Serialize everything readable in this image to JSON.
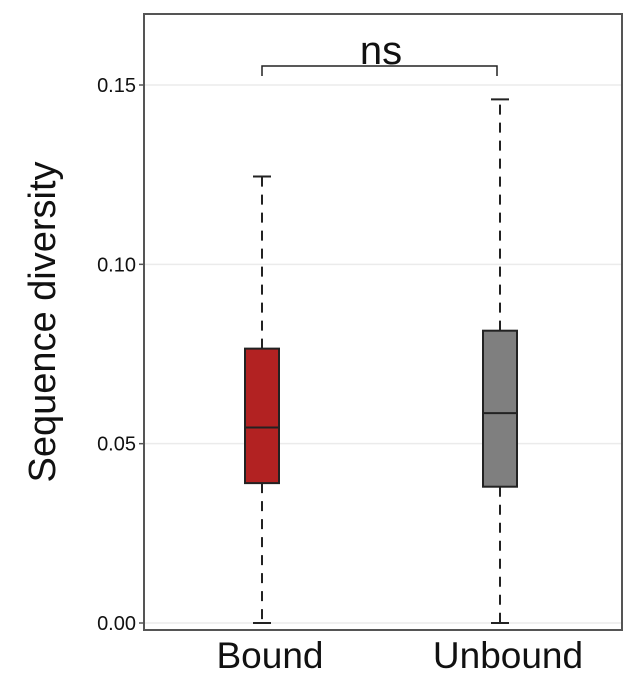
{
  "chart_data": {
    "type": "box",
    "ylabel": "Sequence diversity",
    "xlabel": "",
    "ylim": [
      0.0,
      0.17
    ],
    "yticks": [
      0.0,
      0.05,
      0.1,
      0.15
    ],
    "ytick_labels": [
      "0.00",
      "0.05",
      "0.10",
      "0.15"
    ],
    "grid": true,
    "categories": [
      "Bound",
      "Unbound"
    ],
    "boxes": [
      {
        "category": "Bound",
        "min": 0.0,
        "q1": 0.039,
        "median": 0.0545,
        "q3": 0.0765,
        "max": 0.1245,
        "color": "#b22222"
      },
      {
        "category": "Unbound",
        "min": 0.0,
        "q1": 0.038,
        "median": 0.0585,
        "q3": 0.0815,
        "max": 0.146,
        "color": "#7f7f7f"
      }
    ],
    "significance": {
      "label": "ns",
      "between": [
        "Bound",
        "Unbound"
      ],
      "y": 0.1525
    }
  }
}
